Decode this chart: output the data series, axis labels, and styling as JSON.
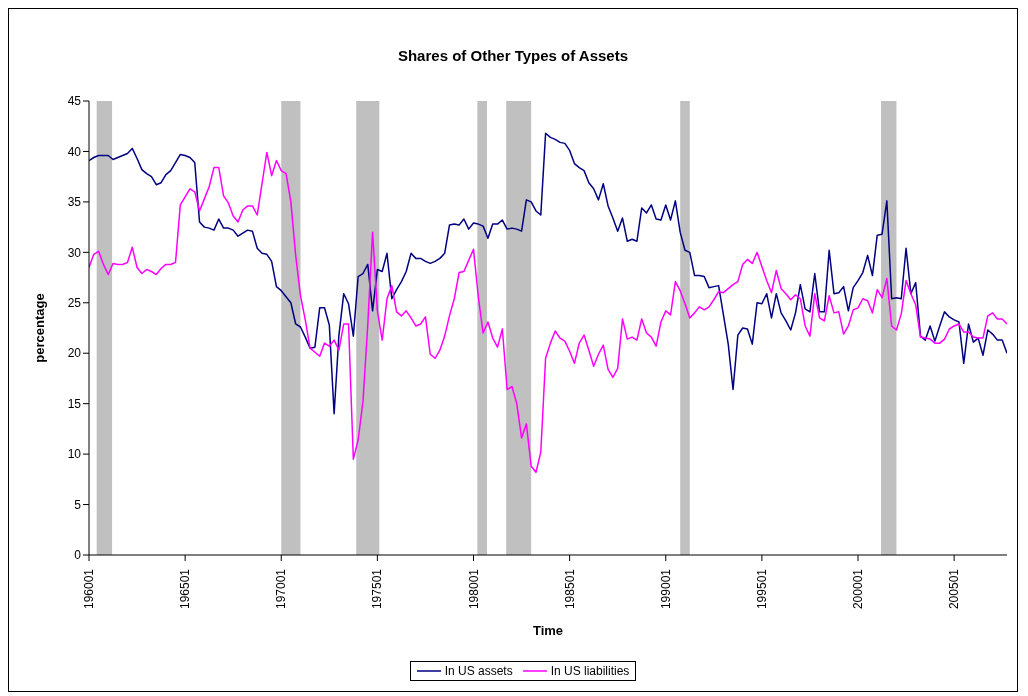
{
  "chart_data": {
    "type": "line",
    "title": "Shares of Other Types of Assets",
    "xlabel": "Time",
    "ylabel": "percentage",
    "categories": [
      "196001",
      null,
      null,
      null,
      null,
      null,
      null,
      null,
      null,
      null,
      null,
      null,
      null,
      null,
      null,
      null,
      null,
      null,
      null,
      null,
      "196501",
      null,
      null,
      null,
      null,
      null,
      null,
      null,
      null,
      null,
      null,
      null,
      null,
      null,
      null,
      null,
      null,
      null,
      null,
      null,
      "197001",
      null,
      null,
      null,
      null,
      null,
      null,
      null,
      null,
      null,
      null,
      null,
      null,
      null,
      null,
      null,
      null,
      null,
      null,
      null,
      "197501",
      null,
      null,
      null,
      null,
      null,
      null,
      null,
      null,
      null,
      null,
      null,
      null,
      null,
      null,
      null,
      null,
      null,
      null,
      null,
      "198001",
      null,
      null,
      null,
      null,
      null,
      null,
      null,
      null,
      null,
      null,
      null,
      null,
      null,
      null,
      null,
      null,
      null,
      null,
      null,
      "198501",
      null,
      null,
      null,
      null,
      null,
      null,
      null,
      null,
      null,
      null,
      null,
      null,
      null,
      null,
      null,
      null,
      null,
      null,
      null,
      "199001",
      null,
      null,
      null,
      null,
      null,
      null,
      null,
      null,
      null,
      null,
      null,
      null,
      null,
      null,
      null,
      null,
      null,
      null,
      null,
      "199501",
      null,
      null,
      null,
      null,
      null,
      null,
      null,
      null,
      null,
      null,
      null,
      null,
      null,
      null,
      null,
      null,
      null,
      null,
      null,
      "200001",
      null,
      null,
      null,
      null,
      null,
      null,
      null,
      null,
      null,
      null,
      null,
      null,
      null,
      null,
      null,
      null,
      null,
      null,
      null,
      "200501",
      null,
      null,
      null,
      null,
      null,
      null,
      null,
      null,
      null,
      null,
      null
    ],
    "ylim": [
      0,
      45
    ],
    "yticks": [
      0,
      5,
      10,
      15,
      20,
      25,
      30,
      35,
      40,
      45
    ],
    "grid": false,
    "legend": "bottom",
    "marker": "none",
    "line_style": "solid",
    "series": [
      {
        "name": "In US assets",
        "color": "#000080",
        "values": [
          39.1,
          39.4,
          39.6,
          39.6,
          39.6,
          39.2,
          39.4,
          39.6,
          39.8,
          40.3,
          39.3,
          38.2,
          37.8,
          37.5,
          36.7,
          36.9,
          37.7,
          38.1,
          38.9,
          39.7,
          39.6,
          39.4,
          38.9,
          33.0,
          32.5,
          32.4,
          32.2,
          33.3,
          32.4,
          32.4,
          32.2,
          31.6,
          31.9,
          32.2,
          32.1,
          30.4,
          29.9,
          29.8,
          29.1,
          26.6,
          26.2,
          25.6,
          25.0,
          22.9,
          22.6,
          21.6,
          20.5,
          20.6,
          24.5,
          24.5,
          22.8,
          14.0,
          21.8,
          25.9,
          24.9,
          21.7,
          27.6,
          27.9,
          28.8,
          24.2,
          28.3,
          28.1,
          29.9,
          25.4,
          26.3,
          27.1,
          28.1,
          29.9,
          29.4,
          29.4,
          29.1,
          28.9,
          29.1,
          29.4,
          29.9,
          32.7,
          32.8,
          32.7,
          33.3,
          32.3,
          32.9,
          32.8,
          32.6,
          31.4,
          32.8,
          32.8,
          33.2,
          32.3,
          32.4,
          32.3,
          32.1,
          35.2,
          35.0,
          34.1,
          33.7,
          41.8,
          41.4,
          41.2,
          40.9,
          40.8,
          40.1,
          38.8,
          38.4,
          38.1,
          36.9,
          36.3,
          35.2,
          36.8,
          34.6,
          33.4,
          32.1,
          33.4,
          31.1,
          31.3,
          31.1,
          34.4,
          33.9,
          34.7,
          33.3,
          33.2,
          34.7,
          33.2,
          35.1,
          32.0,
          30.2,
          30.0,
          27.7,
          27.7,
          27.6,
          26.5,
          26.6,
          26.7,
          23.8,
          20.9,
          16.4,
          21.8,
          22.5,
          22.4,
          20.9,
          25.0,
          24.9,
          25.9,
          23.5,
          25.9,
          24.0,
          23.2,
          22.3,
          24.0,
          26.8,
          24.4,
          24.1,
          27.9,
          24.1,
          24.1,
          30.2,
          25.9,
          26.0,
          26.6,
          24.2,
          26.5,
          27.2,
          28.0,
          29.7,
          27.7,
          31.7,
          31.8,
          35.1,
          25.4,
          25.5,
          25.4,
          30.4,
          25.9,
          27.0,
          21.7,
          21.3,
          22.7,
          21.2,
          22.7,
          24.1,
          23.6,
          23.3,
          23.1,
          19.0,
          22.9,
          21.1,
          21.5,
          19.8,
          22.3,
          21.9,
          21.3,
          21.3,
          20.0
        ]
      },
      {
        "name": "In US liabilities",
        "color": "#ff00ff",
        "values": [
          28.5,
          29.8,
          30.1,
          28.8,
          27.8,
          28.9,
          28.8,
          28.8,
          29.0,
          30.5,
          28.5,
          27.9,
          28.3,
          28.1,
          27.8,
          28.4,
          28.8,
          28.8,
          29.0,
          34.7,
          35.5,
          36.3,
          36.0,
          34.1,
          35.3,
          36.5,
          38.4,
          38.4,
          35.6,
          34.9,
          33.6,
          33.0,
          34.2,
          34.6,
          34.6,
          33.7,
          36.8,
          39.9,
          37.6,
          39.1,
          38.1,
          37.8,
          35.0,
          29.7,
          25.7,
          23.3,
          20.5,
          20.1,
          19.7,
          21.0,
          20.7,
          21.3,
          20.3,
          22.9,
          22.9,
          9.5,
          11.4,
          15.2,
          22.8,
          32.0,
          24.2,
          21.3,
          25.4,
          26.7,
          24.1,
          23.7,
          24.2,
          23.5,
          22.7,
          22.9,
          23.6,
          19.9,
          19.5,
          20.3,
          21.7,
          23.7,
          25.4,
          28.0,
          28.1,
          29.2,
          30.3,
          25.6,
          22.0,
          23.1,
          21.5,
          20.6,
          22.4,
          16.4,
          16.7,
          15.0,
          11.6,
          13.0,
          8.8,
          8.2,
          10.2,
          19.5,
          21.0,
          22.2,
          21.5,
          21.2,
          20.2,
          19.0,
          21.0,
          21.8,
          20.3,
          18.7,
          19.9,
          20.8,
          18.4,
          17.6,
          18.5,
          23.4,
          21.4,
          21.6,
          21.3,
          23.4,
          22.0,
          21.6,
          20.7,
          23.1,
          24.2,
          23.8,
          27.1,
          26.2,
          24.9,
          23.5,
          24.0,
          24.6,
          24.3,
          24.6,
          25.3,
          26.1,
          26.0,
          26.4,
          26.8,
          27.1,
          28.8,
          29.3,
          28.9,
          30.0,
          28.6,
          27.2,
          26.0,
          28.2,
          26.4,
          25.9,
          25.3,
          25.8,
          25.4,
          22.7,
          21.7,
          25.9,
          23.5,
          23.2,
          25.7,
          24.0,
          24.1,
          21.9,
          22.7,
          24.3,
          24.5,
          25.4,
          25.2,
          24.0,
          26.3,
          25.5,
          27.4,
          22.7,
          22.3,
          23.9,
          27.2,
          25.9,
          24.8,
          21.6,
          21.5,
          21.4,
          21.0,
          21.0,
          21.4,
          22.4,
          22.7,
          22.9,
          22.1,
          22.1,
          21.6,
          21.5,
          21.5,
          23.7,
          24.0,
          23.4,
          23.4,
          22.9
        ]
      }
    ]
  }
}
